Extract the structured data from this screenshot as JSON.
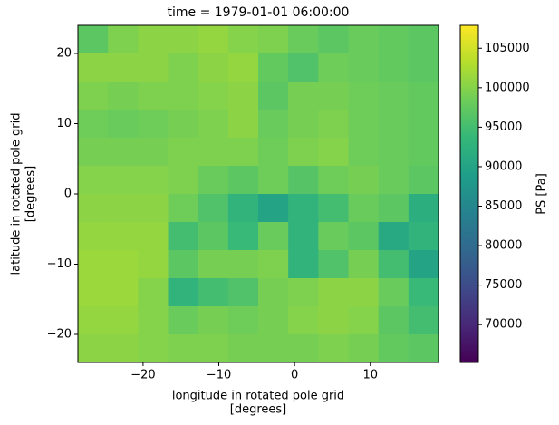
{
  "chart_data": {
    "type": "heatmap",
    "title": "time = 1979-01-01 06:00:00",
    "xlabel": [
      "longitude in rotated pole grid",
      "[degrees]"
    ],
    "ylabel": [
      "latitude in rotated pole grid",
      "[degrees]"
    ],
    "colorbar_label": "PS [Pa]",
    "colormap": "viridis",
    "xlim": [
      -28.6,
      19
    ],
    "ylim": [
      -24,
      24
    ],
    "xticks": [
      {
        "value": -20,
        "label": "−20"
      },
      {
        "value": -10,
        "label": "−10"
      },
      0,
      10
    ],
    "yticks": [
      {
        "value": -20,
        "label": "−20"
      },
      {
        "value": -10,
        "label": "−10"
      },
      0,
      10,
      20
    ],
    "clim": [
      65200,
      107900
    ],
    "cticks": [
      70000,
      75000,
      80000,
      85000,
      90000,
      95000,
      100000,
      105000
    ],
    "z": [
      [
        97000,
        99500,
        100500,
        100500,
        101000,
        100000,
        99500,
        98000,
        97000,
        98000,
        97500,
        97000
      ],
      [
        100500,
        100500,
        100500,
        99500,
        100500,
        101000,
        97500,
        96000,
        98500,
        98000,
        97500,
        97000
      ],
      [
        99500,
        99000,
        99500,
        99500,
        100000,
        100500,
        97000,
        99000,
        99000,
        98500,
        98000,
        97500
      ],
      [
        98500,
        98000,
        98500,
        99000,
        99500,
        100500,
        98000,
        99000,
        99500,
        98500,
        98000,
        97500
      ],
      [
        99000,
        99000,
        99000,
        99500,
        99500,
        99500,
        98500,
        99500,
        100000,
        98500,
        98000,
        97500
      ],
      [
        100000,
        100000,
        100000,
        99500,
        98000,
        97000,
        98500,
        96500,
        98500,
        99000,
        98000,
        97000
      ],
      [
        100500,
        100500,
        100500,
        98500,
        96000,
        93000,
        90000,
        93000,
        95000,
        98000,
        97000,
        92000
      ],
      [
        101000,
        101000,
        101000,
        95000,
        97000,
        94000,
        98000,
        93000,
        98000,
        97000,
        91000,
        93000
      ],
      [
        101500,
        101500,
        101000,
        97000,
        99000,
        99000,
        99500,
        93000,
        96000,
        99000,
        95000,
        90000
      ],
      [
        101500,
        101500,
        100000,
        93000,
        95000,
        96000,
        99000,
        99500,
        100500,
        100500,
        98000,
        94000
      ],
      [
        101000,
        101000,
        100000,
        98000,
        99000,
        98500,
        99000,
        100000,
        100500,
        100000,
        97000,
        95000
      ],
      [
        100500,
        100500,
        100000,
        99500,
        99500,
        99000,
        99000,
        99000,
        99500,
        99000,
        97500,
        97000
      ]
    ]
  }
}
